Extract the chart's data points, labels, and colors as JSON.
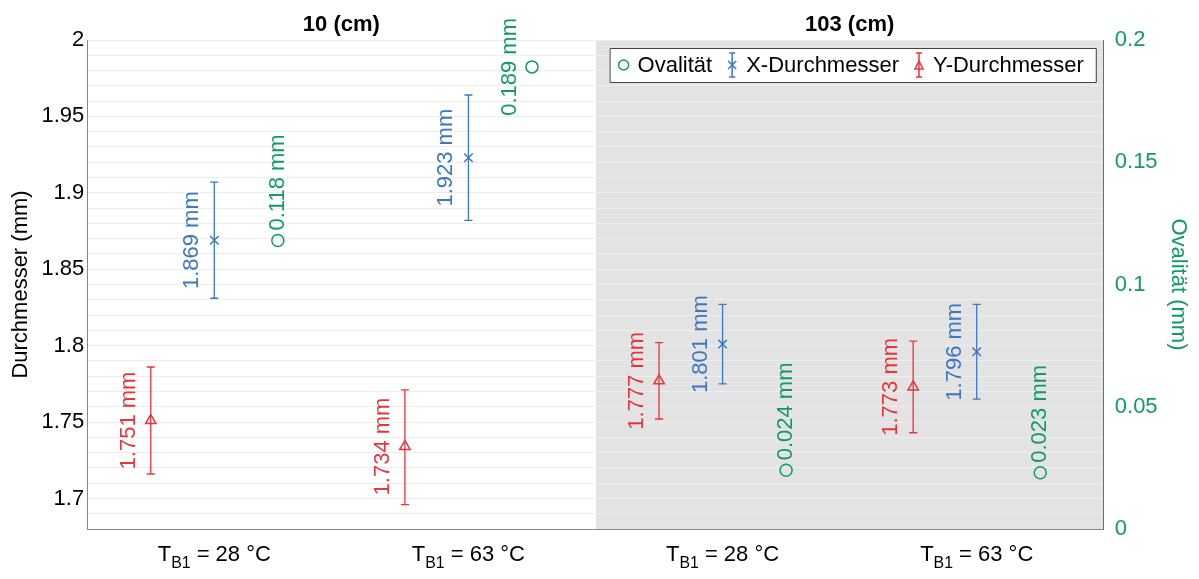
{
  "chart_data": {
    "type": "scatter",
    "ylabel": "Durchmesser (mm)",
    "y2label": "Ovalität (mm)",
    "categories": [
      "T$_{B1}$ = 28 °C",
      "T$_{B1}$ = 63 °C",
      "T$_{B1}$ = 28 °C",
      "T$_{B1}$ = 63 °C"
    ],
    "annotations": [
      "10 (cm)",
      "103 (cm)"
    ],
    "ylim": [
      1.68,
      2
    ],
    "yticks": [
      {
        "value": 1.68,
        "label": null
      },
      {
        "value": 1.69,
        "label": null
      },
      1.7,
      {
        "value": 1.71,
        "label": null
      },
      {
        "value": 1.72,
        "label": null
      },
      {
        "value": 1.73,
        "label": null
      },
      {
        "value": 1.74,
        "label": null
      },
      1.75,
      {
        "value": 1.76,
        "label": null
      },
      {
        "value": 1.77,
        "label": null
      },
      {
        "value": 1.78,
        "label": null
      },
      {
        "value": 1.79,
        "label": null
      },
      1.8,
      {
        "value": 1.81,
        "label": null
      },
      {
        "value": 1.82,
        "label": null
      },
      {
        "value": 1.83,
        "label": null
      },
      {
        "value": 1.84,
        "label": null
      },
      1.85,
      {
        "value": 1.86,
        "label": null
      },
      {
        "value": 1.87,
        "label": null
      },
      {
        "value": 1.88,
        "label": null
      },
      {
        "value": 1.89,
        "label": null
      },
      1.9,
      {
        "value": 1.91,
        "label": null
      },
      {
        "value": 1.92,
        "label": null
      },
      {
        "value": 1.93,
        "label": null
      },
      {
        "value": 1.94,
        "label": null
      },
      1.95,
      {
        "value": 1.96,
        "label": null
      },
      {
        "value": 1.97,
        "label": null
      },
      {
        "value": 1.98,
        "label": null
      },
      {
        "value": 1.99,
        "label": null
      },
      2
    ],
    "y2lim": [
      0,
      0.2
    ],
    "y2ticks": [
      0,
      0.05,
      0.1,
      0.15,
      0.2
    ],
    "grid": "y",
    "legend": "top right",
    "series": [
      {
        "name": "Ovalität",
        "axis": "y2",
        "color": "#129b62",
        "marker": "circle",
        "values": [
          0.118,
          0.189,
          0.024,
          0.023
        ],
        "value_labels": [
          "0.118 mm",
          "0.189 mm",
          "0.024 mm",
          "0.023 mm"
        ]
      },
      {
        "name": "X-Durchmesser",
        "color": "#3b78c1",
        "marker": "cross",
        "values": [
          1.869,
          1.923,
          1.801,
          1.796
        ],
        "errors": [
          [
            1.831,
            1.907
          ],
          [
            1.882,
            1.964
          ],
          [
            1.775,
            1.827
          ],
          [
            1.765,
            1.827
          ]
        ],
        "value_labels": [
          "1.869 mm",
          "1.923 mm",
          "1.801 mm",
          "1.796 mm"
        ]
      },
      {
        "name": "Y-Durchmesser",
        "color": "#e8343c",
        "marker": "triangle",
        "values": [
          1.751,
          1.734,
          1.777,
          1.773
        ],
        "errors": [
          [
            1.716,
            1.786
          ],
          [
            1.696,
            1.771
          ],
          [
            1.752,
            1.802
          ],
          [
            1.743,
            1.803
          ]
        ],
        "value_labels": [
          "1.751 mm",
          "1.734 mm",
          "1.777 mm",
          "1.773 mm"
        ]
      }
    ]
  }
}
